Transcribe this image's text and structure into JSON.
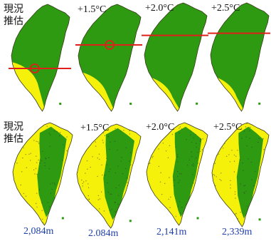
{
  "colors": {
    "forest": "#2e9a12",
    "lowland": "#f5f10a",
    "outline": "#3a3a1a",
    "marker": "#e0201a",
    "label_text": "#111111",
    "elevation_text": "#1f3fa8"
  },
  "top_row": {
    "panels": [
      {
        "label": "現況推估",
        "line_level": 0.6,
        "has_circle": true,
        "circle_x": 0.4,
        "green_share": 0.58
      },
      {
        "label": "+1.5°C",
        "line_level": 0.38,
        "has_circle": true,
        "circle_x": 0.5,
        "green_share": 0.66
      },
      {
        "label": "+2.0°C",
        "line_level": 0.3,
        "has_circle": false,
        "circle_x": 0.0,
        "green_share": 0.7
      },
      {
        "label": "+2.5°C",
        "line_level": 0.28,
        "has_circle": false,
        "circle_x": 0.0,
        "green_share": 0.7
      }
    ]
  },
  "bottom_row": {
    "panels": [
      {
        "label": "現況推估",
        "elevation": "2,084m",
        "green_share": 0.42
      },
      {
        "label": "+1.5°C",
        "elevation": "2.084m",
        "green_share": 0.4
      },
      {
        "label": "+2.0°C",
        "elevation": "2,141m",
        "green_share": 0.36
      },
      {
        "label": "+2.5°C",
        "elevation": "2,339m",
        "green_share": 0.34
      }
    ]
  }
}
